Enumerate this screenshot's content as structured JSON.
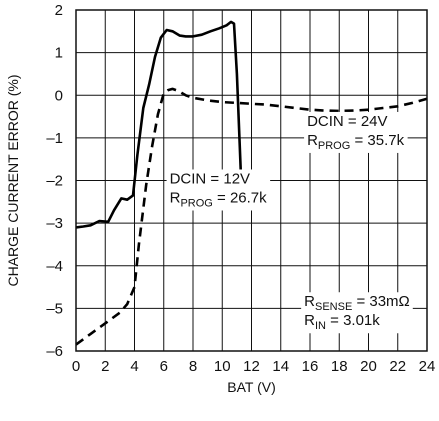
{
  "chart_data": {
    "type": "line",
    "title": "",
    "xlabel": "BAT (V)",
    "ylabel": "CHARGE CURRENT ERROR (%)",
    "xlim": [
      0,
      24
    ],
    "ylim": [
      -6,
      2
    ],
    "x_ticks": [
      "0",
      "2",
      "4",
      "6",
      "8",
      "10",
      "12",
      "14",
      "16",
      "18",
      "20",
      "22",
      "24"
    ],
    "y_ticks": [
      "2",
      "1",
      "0",
      "–1",
      "–2",
      "–3",
      "–4",
      "–5",
      "–6"
    ],
    "grid": true,
    "series": [
      {
        "style": "solid",
        "points": [
          [
            0,
            -3.1
          ],
          [
            0.5,
            -3.08
          ],
          [
            1,
            -3.05
          ],
          [
            1.6,
            -2.95
          ],
          [
            2.2,
            -2.97
          ],
          [
            2.6,
            -2.7
          ],
          [
            3.1,
            -2.42
          ],
          [
            3.5,
            -2.45
          ],
          [
            3.9,
            -2.35
          ],
          [
            4.2,
            -1.4
          ],
          [
            4.6,
            -0.3
          ],
          [
            5.0,
            0.25
          ],
          [
            5.4,
            0.9
          ],
          [
            5.8,
            1.35
          ],
          [
            6.2,
            1.53
          ],
          [
            6.6,
            1.5
          ],
          [
            7.1,
            1.4
          ],
          [
            7.5,
            1.38
          ],
          [
            8.0,
            1.38
          ],
          [
            8.6,
            1.42
          ],
          [
            9.2,
            1.5
          ],
          [
            9.8,
            1.57
          ],
          [
            10.3,
            1.64
          ],
          [
            10.6,
            1.72
          ],
          [
            10.8,
            1.68
          ],
          [
            11.0,
            0.5
          ],
          [
            11.3,
            -2.1
          ]
        ]
      },
      {
        "style": "dashed",
        "points": [
          [
            0,
            -5.85
          ],
          [
            1.0,
            -5.6
          ],
          [
            2.0,
            -5.35
          ],
          [
            3.0,
            -5.1
          ],
          [
            3.5,
            -4.9
          ],
          [
            4.0,
            -4.5
          ],
          [
            4.3,
            -3.5
          ],
          [
            4.8,
            -2.1
          ],
          [
            5.2,
            -1.2
          ],
          [
            5.6,
            -0.45
          ],
          [
            6.0,
            0.05
          ],
          [
            6.3,
            0.12
          ],
          [
            6.6,
            0.15
          ],
          [
            7.0,
            0.1
          ],
          [
            7.5,
            0.0
          ],
          [
            8.0,
            -0.06
          ],
          [
            9.0,
            -0.12
          ],
          [
            10.0,
            -0.16
          ],
          [
            11.0,
            -0.18
          ],
          [
            12.0,
            -0.2
          ],
          [
            13.0,
            -0.22
          ],
          [
            14.0,
            -0.26
          ],
          [
            15.0,
            -0.3
          ],
          [
            16.0,
            -0.34
          ],
          [
            17.0,
            -0.36
          ],
          [
            18.0,
            -0.37
          ],
          [
            19.0,
            -0.36
          ],
          [
            20.0,
            -0.34
          ],
          [
            21.0,
            -0.3
          ],
          [
            22.0,
            -0.26
          ],
          [
            23.0,
            -0.18
          ],
          [
            24.0,
            -0.08
          ]
        ]
      }
    ],
    "annotations": [
      {
        "lines": [
          {
            "main": "DCIN = 24V"
          },
          {
            "main": "R",
            "sub": "PROG",
            "rest": " = 35.7k"
          }
        ],
        "at": [
          15.8,
          -0.72
        ]
      },
      {
        "lines": [
          {
            "main": "DCIN = 12V"
          },
          {
            "main": "R",
            "sub": "PROG",
            "rest": " = 26.7k"
          }
        ],
        "at": [
          6.4,
          -2.07
        ]
      },
      {
        "lines": [
          {
            "main": "R",
            "sub": "SENSE",
            "rest": " = 33mΩ"
          },
          {
            "main": "R",
            "sub": "IN",
            "rest": " = 3.01k"
          }
        ],
        "at": [
          15.6,
          -4.95
        ]
      }
    ]
  }
}
